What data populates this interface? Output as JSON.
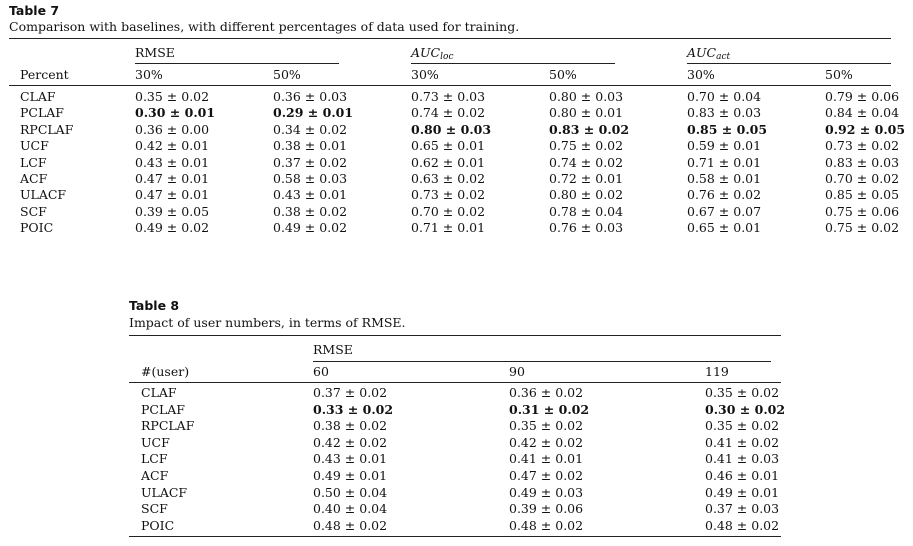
{
  "table7": {
    "title": "Table 7",
    "caption": "Comparison with baselines, with different percentages of data used for training.",
    "row_header": "Percent",
    "group_rmse": "RMSE",
    "group_auc_loc_main": "AUC",
    "group_auc_loc_sub": "loc",
    "group_auc_act_main": "AUC",
    "group_auc_act_sub": "act",
    "sub_30": "30%",
    "sub_50": "50%",
    "rows": [
      {
        "name": "CLAF",
        "cells": [
          {
            "v": "0.35 ± 0.02"
          },
          {
            "v": "0.36 ± 0.03"
          },
          {
            "v": "0.73 ± 0.03"
          },
          {
            "v": "0.80 ± 0.03"
          },
          {
            "v": "0.70 ± 0.04"
          },
          {
            "v": "0.79 ± 0.06"
          }
        ]
      },
      {
        "name": "PCLAF",
        "cells": [
          {
            "v": "0.30 ± 0.01",
            "b": true
          },
          {
            "v": "0.29 ± 0.01",
            "b": true
          },
          {
            "v": "0.74 ± 0.02"
          },
          {
            "v": "0.80 ± 0.01"
          },
          {
            "v": "0.83 ± 0.03"
          },
          {
            "v": "0.84 ± 0.04"
          }
        ]
      },
      {
        "name": "RPCLAF",
        "cells": [
          {
            "v": "0.36 ± 0.00"
          },
          {
            "v": "0.34 ± 0.02"
          },
          {
            "v": "0.80 ± 0.03",
            "b": true
          },
          {
            "v": "0.83 ± 0.02",
            "b": true
          },
          {
            "v": "0.85 ± 0.05",
            "b": true
          },
          {
            "v": "0.92 ± 0.05",
            "b": true
          }
        ]
      },
      {
        "name": "UCF",
        "cells": [
          {
            "v": "0.42 ± 0.01"
          },
          {
            "v": "0.38 ± 0.01"
          },
          {
            "v": "0.65 ± 0.01"
          },
          {
            "v": "0.75 ± 0.02"
          },
          {
            "v": "0.59 ± 0.01"
          },
          {
            "v": "0.73 ± 0.02"
          }
        ]
      },
      {
        "name": "LCF",
        "cells": [
          {
            "v": "0.43 ± 0.01"
          },
          {
            "v": "0.37 ± 0.02"
          },
          {
            "v": "0.62 ± 0.01"
          },
          {
            "v": "0.74 ± 0.02"
          },
          {
            "v": "0.71 ± 0.01"
          },
          {
            "v": "0.83 ± 0.03"
          }
        ]
      },
      {
        "name": "ACF",
        "cells": [
          {
            "v": "0.47 ± 0.01"
          },
          {
            "v": "0.58 ± 0.03"
          },
          {
            "v": "0.63 ± 0.02"
          },
          {
            "v": "0.72 ± 0.01"
          },
          {
            "v": "0.58 ± 0.01"
          },
          {
            "v": "0.70 ± 0.02"
          }
        ]
      },
      {
        "name": "ULACF",
        "cells": [
          {
            "v": "0.47 ± 0.01"
          },
          {
            "v": "0.43 ± 0.01"
          },
          {
            "v": "0.73 ± 0.02"
          },
          {
            "v": "0.80 ± 0.02"
          },
          {
            "v": "0.76 ± 0.02"
          },
          {
            "v": "0.85 ± 0.05"
          }
        ]
      },
      {
        "name": "SCF",
        "cells": [
          {
            "v": "0.39 ± 0.05"
          },
          {
            "v": "0.38 ± 0.02"
          },
          {
            "v": "0.70 ± 0.02"
          },
          {
            "v": "0.78 ± 0.04"
          },
          {
            "v": "0.67 ± 0.07"
          },
          {
            "v": "0.75 ± 0.06"
          }
        ]
      },
      {
        "name": "POIC",
        "cells": [
          {
            "v": "0.49 ± 0.02"
          },
          {
            "v": "0.49 ± 0.02"
          },
          {
            "v": "0.71 ± 0.01"
          },
          {
            "v": "0.76 ± 0.03"
          },
          {
            "v": "0.65 ± 0.01"
          },
          {
            "v": "0.75 ± 0.02"
          }
        ]
      }
    ]
  },
  "table8": {
    "title": "Table 8",
    "caption": "Impact of user numbers, in terms of RMSE.",
    "row_header": "#(user)",
    "group_rmse": "RMSE",
    "col_60": "60",
    "col_90": "90",
    "col_119": "119",
    "rows": [
      {
        "name": "CLAF",
        "cells": [
          {
            "v": "0.37 ± 0.02"
          },
          {
            "v": "0.36 ± 0.02"
          },
          {
            "v": "0.35 ± 0.02"
          }
        ]
      },
      {
        "name": "PCLAF",
        "cells": [
          {
            "v": "0.33 ± 0.02",
            "b": true
          },
          {
            "v": "0.31 ± 0.02",
            "b": true
          },
          {
            "v": "0.30 ± 0.02",
            "b": true
          }
        ]
      },
      {
        "name": "RPCLAF",
        "cells": [
          {
            "v": "0.38 ± 0.02"
          },
          {
            "v": "0.35 ± 0.02"
          },
          {
            "v": "0.35 ± 0.02"
          }
        ]
      },
      {
        "name": "UCF",
        "cells": [
          {
            "v": "0.42 ± 0.02"
          },
          {
            "v": "0.42 ± 0.02"
          },
          {
            "v": "0.41 ± 0.02"
          }
        ]
      },
      {
        "name": "LCF",
        "cells": [
          {
            "v": "0.43 ± 0.01"
          },
          {
            "v": "0.41 ± 0.01"
          },
          {
            "v": "0.41 ± 0.03"
          }
        ]
      },
      {
        "name": "ACF",
        "cells": [
          {
            "v": "0.49 ± 0.01"
          },
          {
            "v": "0.47 ± 0.02"
          },
          {
            "v": "0.46 ± 0.01"
          }
        ]
      },
      {
        "name": "ULACF",
        "cells": [
          {
            "v": "0.50 ± 0.04"
          },
          {
            "v": "0.49 ± 0.03"
          },
          {
            "v": "0.49 ± 0.01"
          }
        ]
      },
      {
        "name": "SCF",
        "cells": [
          {
            "v": "0.40 ± 0.04"
          },
          {
            "v": "0.39 ± 0.06"
          },
          {
            "v": "0.37 ± 0.03"
          }
        ]
      },
      {
        "name": "POIC",
        "cells": [
          {
            "v": "0.48 ± 0.02"
          },
          {
            "v": "0.48 ± 0.02"
          },
          {
            "v": "0.48 ± 0.02"
          }
        ]
      }
    ]
  }
}
